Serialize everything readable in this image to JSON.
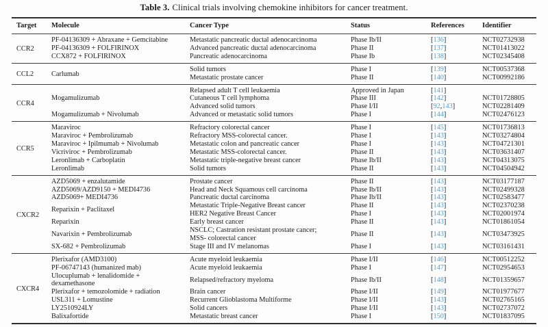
{
  "caption": {
    "label": "Table 3.",
    "text": "Clinical trials involving chemokine inhibitors for cancer treatment."
  },
  "columns": [
    "Target",
    "Molecule",
    "Cancer Type",
    "Status",
    "References",
    "Identifier"
  ],
  "colors": {
    "reference_link": "#4a9fd4",
    "text": "#1b1b1b",
    "rule": "#2f2f2f"
  },
  "sections": [
    {
      "target": "CCR2",
      "rows": [
        {
          "molecule": "PF-04136309 + Abraxane + Gemcitabine",
          "cancer": "Metastatic pancreatic ductal adenocarcinoma",
          "status": "Phase Ib/II",
          "refs": [
            "136"
          ],
          "id": "NCT02732938"
        },
        {
          "molecule": "PF-04136309 + FOLFIRINOX",
          "cancer": "Advanced pancreatic ductal adenocarcinoma",
          "status": "Phase II",
          "refs": [
            "137"
          ],
          "id": "NCT01413022"
        },
        {
          "molecule": "CCX872 + FOLFIRINOX",
          "cancer": "Pancreatic adenocarcinoma",
          "status": "Phase Ib",
          "refs": [
            "138"
          ],
          "id": "NCT02345408"
        }
      ]
    },
    {
      "target": "CCL2",
      "rows": [
        {
          "molecule": "Carlumab",
          "cancer": "Solid tumors",
          "status": "Phase I",
          "refs": [
            "139"
          ],
          "id": "NCT00537368"
        },
        {
          "cancer": "Metastatic prostate cancer",
          "status": "Phase II",
          "refs": [
            "140"
          ],
          "id": "NCT00992186"
        }
      ]
    },
    {
      "target": "CCR4",
      "rows": [
        {
          "molecule": "Mogamulizumab",
          "cancer": "Relapsed adult T cell leukaemia",
          "status": "Approved in Japan",
          "refs": [
            "141"
          ],
          "id": ""
        },
        {
          "cancer": "Cutaneous T cell lymphoma",
          "status": "Phase III",
          "refs": [
            "142"
          ],
          "id": "NCT01728805"
        },
        {
          "cancer": "Advanced solid tumors",
          "status": "Phase I/II",
          "refs": [
            "92",
            "143"
          ],
          "id": "NCT02281409"
        },
        {
          "molecule": "Mogamulizumab + Nivolumab",
          "cancer": "Advanced or metastatic solid tumors",
          "status": "Phase I",
          "refs": [
            "144"
          ],
          "id": "NCT02476123"
        }
      ]
    },
    {
      "target": "CCR5",
      "rows": [
        {
          "molecule": "Maraviroc",
          "cancer": "Refractory colorectal cancer",
          "status": "Phase I",
          "refs": [
            "145"
          ],
          "id": "NCT01736813"
        },
        {
          "molecule": "Maraviroc + Pembrolizumab",
          "cancer": "Refractory MSS-colorectal cancer.",
          "status": "Phase I",
          "refs": [
            "143"
          ],
          "id": "NCT03274804"
        },
        {
          "molecule": "Maraviroc + Ipilmumab + Nivolumab",
          "cancer": "Metastatic colon and pancreatic cancer",
          "status": "Phase I",
          "refs": [
            "143"
          ],
          "id": "NCT04721301"
        },
        {
          "molecule": "Vicriviroc + Pembrolizumab",
          "cancer": "Metastatic MSS-colorectal cancer.",
          "status": "Phase II",
          "refs": [
            "143"
          ],
          "id": "NCT03631407"
        },
        {
          "molecule": "Leronlimab + Carboplatin",
          "cancer": "Metastatic triple-negative breast cancer",
          "status": "Phase Ib/II",
          "refs": [
            "143"
          ],
          "id": "NCT04313075"
        },
        {
          "molecule": "Leronlimab",
          "cancer": "Solid tumors",
          "status": "Phase II",
          "refs": [
            "143"
          ],
          "id": "NCT04504942"
        }
      ]
    },
    {
      "target": "CXCR2",
      "rows": [
        {
          "molecule": "AZD5069 + enzalutamide",
          "cancer": "Prostate cancer",
          "status": "Phase II",
          "refs": [
            "143"
          ],
          "id": "NCT03177187"
        },
        {
          "molecule": "AZD5069/AZD9150 + MEDI4736",
          "cancer": "Head and Neck Squamous cell carcinoma",
          "status": "Phase Ib/II",
          "refs": [
            "143"
          ],
          "id": "NCT02499328"
        },
        {
          "molecule": "AZD5069+ MEDI4736",
          "cancer": "Pancreatic ductal carcinoma",
          "status": "Phase Ib/II",
          "refs": [
            "143"
          ],
          "id": "NCT02583477"
        },
        {
          "molecule": "Reparixin + Paclitaxel",
          "cancer": "Metastatic Triple-Negative Breast cancer",
          "status": "Phase II",
          "refs": [
            "143"
          ],
          "id": "NCT02370238"
        },
        {
          "cancer": "HER2 Negative Breast Cancer",
          "status": "Phase I",
          "refs": [
            "143"
          ],
          "id": "NCT02001974"
        },
        {
          "molecule": "Reparixin",
          "cancer": "Early breast cancer",
          "status": "Phase II",
          "refs": [
            "143"
          ],
          "id": "NCT01861054"
        },
        {
          "molecule": "Navarixin + Pembrolizumab",
          "cancer": "NSCLC; Castration resistant prostate cancer;\nMSS- colorectal cancer",
          "status": "Phase II",
          "refs": [
            "143"
          ],
          "id": "NCT03473925"
        },
        {
          "molecule": "SX-682 + Pembrolizumab",
          "cancer": "Stage III and IV melanomas",
          "status": "Phase I",
          "refs": [
            "143"
          ],
          "id": "NCT03161431"
        }
      ]
    },
    {
      "target": "CXCR4",
      "rows": [
        {
          "molecule": "Plerixafor (AMD3100)",
          "cancer": "Acute myeloid leukaemia",
          "status": "Phase I/II",
          "refs": [
            "146"
          ],
          "id": "NCT00512252"
        },
        {
          "molecule": "PF-06747143 (humanized mab)",
          "cancer": "Acute myeloid leukaemia",
          "status": "Phase I",
          "refs": [
            "147"
          ],
          "id": "NCT02954653"
        },
        {
          "molecule": "Ulocuplumab + lenalidomide +\ndexamethasone",
          "cancer": "Relapsed/refractory myeloma",
          "status": "Phase Ib/II",
          "refs": [
            "148"
          ],
          "id": "NCT01359657"
        },
        {
          "molecule": "Plerixafor + temozolomide + radiation",
          "cancer": "Brain cancer",
          "status": "Phase I/II",
          "refs": [
            "149"
          ],
          "id": "NCT01977677"
        },
        {
          "molecule": "USL311 + Lomustine",
          "cancer": "Recurrent Glioblastoma Multiforme",
          "status": "Phase I/II",
          "refs": [
            "143"
          ],
          "id": "NCT02765165"
        },
        {
          "molecule": "LY2510924LY",
          "cancer": "Solid cancers",
          "status": "Phase I/II",
          "refs": [
            "143"
          ],
          "id": "NCT02737072"
        },
        {
          "molecule": "Balixafortide",
          "cancer": "Metastatic breast cancer",
          "status": "Phase I",
          "refs": [
            "150"
          ],
          "id": "NCT01837095"
        }
      ]
    }
  ]
}
